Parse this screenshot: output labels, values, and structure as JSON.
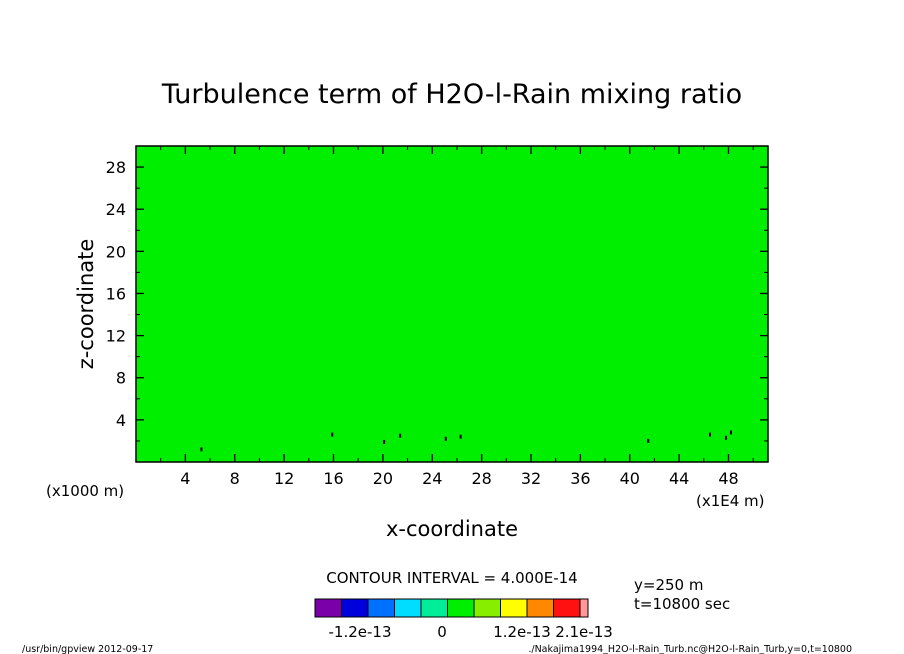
{
  "chart_data": {
    "type": "heatmap",
    "title": "Turbulence term of H2O-l-Rain mixing ratio",
    "xlabel": "x-coordinate",
    "ylabel": "z-coordinate",
    "x_unit_left": "(x1000 m)",
    "x_unit_right": "(x1E4 m)",
    "xlim": [
      0,
      51.2
    ],
    "ylim": [
      0,
      30
    ],
    "x_ticks": [
      "4",
      "8",
      "12",
      "16",
      "20",
      "24",
      "28",
      "32",
      "36",
      "40",
      "44",
      "48"
    ],
    "x_tick_values": [
      4,
      8,
      12,
      16,
      20,
      24,
      28,
      32,
      36,
      40,
      44,
      48
    ],
    "y_ticks": [
      "4",
      "8",
      "12",
      "16",
      "20",
      "24",
      "28"
    ],
    "y_tick_values": [
      4,
      8,
      12,
      16,
      20,
      24,
      28
    ],
    "field_color": "#00ee00",
    "small_features": [
      {
        "x": 5.3,
        "z": 1.2
      },
      {
        "x": 15.9,
        "z": 2.6
      },
      {
        "x": 20.1,
        "z": 1.9
      },
      {
        "x": 21.4,
        "z": 2.5
      },
      {
        "x": 25.1,
        "z": 2.2
      },
      {
        "x": 26.3,
        "z": 2.4
      },
      {
        "x": 41.5,
        "z": 2.0
      },
      {
        "x": 46.5,
        "z": 2.6
      },
      {
        "x": 47.8,
        "z": 2.3
      },
      {
        "x": 48.2,
        "z": 2.8
      }
    ],
    "contour_interval_label": "CONTOUR INTERVAL = 4.000E-14",
    "colorbar": {
      "colors": [
        "#7a00aa",
        "#0000dd",
        "#0070ff",
        "#00ddff",
        "#00ee99",
        "#00ee00",
        "#88ee00",
        "#ffff00",
        "#ff8800",
        "#ff1111",
        "#ff9999"
      ],
      "labels": [
        "-1.2e-13",
        "0",
        "1.2e-13",
        "2.1e-13"
      ]
    },
    "annotation_lines": [
      "y=250 m",
      "t=10800 sec"
    ]
  },
  "footer": {
    "left": "/usr/bin/gpview   2012-09-17",
    "right": "./Nakajima1994_H2O-l-Rain_Turb.nc@H2O-l-Rain_Turb,y=0,t=10800"
  }
}
